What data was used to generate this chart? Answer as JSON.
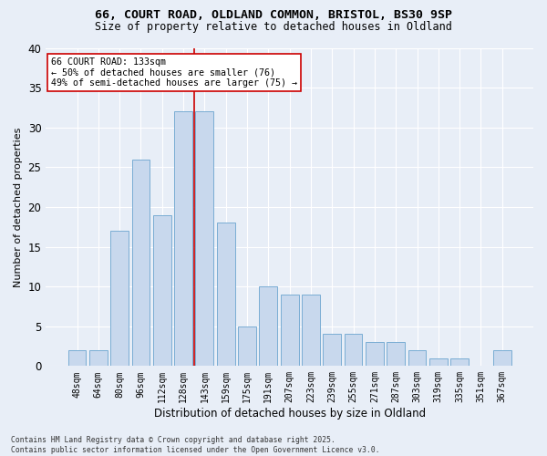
{
  "title_line1": "66, COURT ROAD, OLDLAND COMMON, BRISTOL, BS30 9SP",
  "title_line2": "Size of property relative to detached houses in Oldland",
  "xlabel": "Distribution of detached houses by size in Oldland",
  "ylabel": "Number of detached properties",
  "bar_color": "#c8d8ed",
  "bar_edge_color": "#7aadd4",
  "categories": [
    "48sqm",
    "64sqm",
    "80sqm",
    "96sqm",
    "112sqm",
    "128sqm",
    "143sqm",
    "159sqm",
    "175sqm",
    "191sqm",
    "207sqm",
    "223sqm",
    "239sqm",
    "255sqm",
    "271sqm",
    "287sqm",
    "303sqm",
    "319sqm",
    "335sqm",
    "351sqm",
    "367sqm"
  ],
  "values": [
    2,
    2,
    17,
    26,
    19,
    32,
    32,
    18,
    5,
    10,
    9,
    9,
    4,
    4,
    3,
    3,
    2,
    1,
    1,
    0,
    2
  ],
  "ylim": [
    0,
    40
  ],
  "yticks": [
    0,
    5,
    10,
    15,
    20,
    25,
    30,
    35,
    40
  ],
  "vline_x": 5.5,
  "vline_color": "#cc0000",
  "annotation_line1": "66 COURT ROAD: 133sqm",
  "annotation_line2": "← 50% of detached houses are smaller (76)",
  "annotation_line3": "49% of semi-detached houses are larger (75) →",
  "annotation_box_color": "#ffffff",
  "annotation_box_edge": "#cc0000",
  "bg_color": "#e8eef7",
  "grid_color": "#ffffff",
  "footer_line1": "Contains HM Land Registry data © Crown copyright and database right 2025.",
  "footer_line2": "Contains public sector information licensed under the Open Government Licence v3.0."
}
